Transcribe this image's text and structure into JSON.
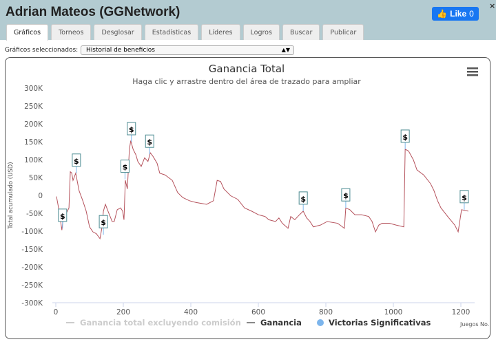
{
  "window": {
    "title": "Adrian Mateos (GGNetwork)",
    "like_label": "Like",
    "like_count": "0",
    "close": "×"
  },
  "tabs": [
    {
      "label": "Gráficos",
      "active": true
    },
    {
      "label": "Torneos"
    },
    {
      "label": "Desglosar"
    },
    {
      "label": "Estadísticas"
    },
    {
      "label": "Líderes"
    },
    {
      "label": "Logros"
    },
    {
      "label": "Buscar"
    },
    {
      "label": "Publicar"
    }
  ],
  "selector": {
    "label": "Gráficos seleccionados:",
    "value": "Historial de beneficios"
  },
  "chart_data": {
    "type": "line",
    "title": "Ganancia Total",
    "subtitle": "Haga clic y arrastre dentro del área de trazado para ampliar",
    "ylabel": "Total acumulado (USD)",
    "xlabel": "Juegos No.",
    "xlim": [
      0,
      1240
    ],
    "ylim": [
      -300000,
      300000
    ],
    "xticks": [
      0,
      200,
      400,
      600,
      800,
      1000,
      1200
    ],
    "yticks": [
      {
        "v": 300000,
        "l": "300K"
      },
      {
        "v": 250000,
        "l": "250K"
      },
      {
        "v": 200000,
        "l": "200K"
      },
      {
        "v": 150000,
        "l": "150K"
      },
      {
        "v": 100000,
        "l": "100K"
      },
      {
        "v": 50000,
        "l": "50K"
      },
      {
        "v": 0,
        "l": "0"
      },
      {
        "v": -50000,
        "l": "-50K"
      },
      {
        "v": -100000,
        "l": "-100K"
      },
      {
        "v": -150000,
        "l": "-150K"
      },
      {
        "v": -200000,
        "l": "-200K"
      },
      {
        "v": -250000,
        "l": "-250K"
      },
      {
        "v": -300000,
        "l": "-300K"
      }
    ],
    "grid": false,
    "legend": {
      "placement": "bottom",
      "items": [
        {
          "label": "Ganancia total excluyendo comisión",
          "color": "#cccccc",
          "hidden": true
        },
        {
          "label": "Ganancia",
          "color": "#888888"
        },
        {
          "label": "Victorias Significativas",
          "color": "#7cb5ec"
        }
      ]
    },
    "series": [
      {
        "name": "Ganancia",
        "color": "#b5525c",
        "points": [
          [
            2,
            -3000
          ],
          [
            10,
            -44000
          ],
          [
            18,
            -97000
          ],
          [
            24,
            -49000
          ],
          [
            30,
            -52000
          ],
          [
            39,
            -35000
          ],
          [
            43,
            66000
          ],
          [
            47,
            63000
          ],
          [
            51,
            42000
          ],
          [
            59,
            62000
          ],
          [
            69,
            13000
          ],
          [
            80,
            -15000
          ],
          [
            90,
            -44000
          ],
          [
            100,
            -88000
          ],
          [
            110,
            -102000
          ],
          [
            120,
            -107000
          ],
          [
            131,
            -121000
          ],
          [
            137,
            -88000
          ],
          [
            141,
            -44000
          ],
          [
            147,
            -25000
          ],
          [
            153,
            -40000
          ],
          [
            161,
            -59000
          ],
          [
            167,
            -73000
          ],
          [
            173,
            -73000
          ],
          [
            182,
            -40000
          ],
          [
            192,
            -35000
          ],
          [
            198,
            -44000
          ],
          [
            202,
            -68000
          ],
          [
            206,
            42000
          ],
          [
            212,
            18000
          ],
          [
            218,
            129000
          ],
          [
            222,
            153000
          ],
          [
            229,
            129000
          ],
          [
            237,
            114000
          ],
          [
            243,
            95000
          ],
          [
            253,
            81000
          ],
          [
            263,
            105000
          ],
          [
            273,
            95000
          ],
          [
            280,
            119000
          ],
          [
            288,
            109000
          ],
          [
            300,
            90000
          ],
          [
            308,
            62000
          ],
          [
            324,
            57000
          ],
          [
            345,
            42000
          ],
          [
            361,
            8000
          ],
          [
            376,
            -6000
          ],
          [
            396,
            -15000
          ],
          [
            416,
            -20000
          ],
          [
            447,
            -25000
          ],
          [
            467,
            -15000
          ],
          [
            478,
            42000
          ],
          [
            488,
            39000
          ],
          [
            498,
            18000
          ],
          [
            518,
            -1000
          ],
          [
            539,
            -11000
          ],
          [
            559,
            -35000
          ],
          [
            580,
            -44000
          ],
          [
            600,
            -54000
          ],
          [
            620,
            -59000
          ],
          [
            631,
            -68000
          ],
          [
            651,
            -73000
          ],
          [
            661,
            -63000
          ],
          [
            671,
            -78000
          ],
          [
            688,
            -92000
          ],
          [
            696,
            -59000
          ],
          [
            708,
            -68000
          ],
          [
            722,
            -54000
          ],
          [
            733,
            -44000
          ],
          [
            743,
            -63000
          ],
          [
            753,
            -73000
          ],
          [
            763,
            -88000
          ],
          [
            784,
            -83000
          ],
          [
            804,
            -73000
          ],
          [
            835,
            -78000
          ],
          [
            855,
            -92000
          ],
          [
            859,
            -35000
          ],
          [
            871,
            -40000
          ],
          [
            886,
            -54000
          ],
          [
            906,
            -54000
          ],
          [
            927,
            -59000
          ],
          [
            937,
            -73000
          ],
          [
            947,
            -102000
          ],
          [
            957,
            -83000
          ],
          [
            967,
            -78000
          ],
          [
            988,
            -78000
          ],
          [
            1008,
            -83000
          ],
          [
            1031,
            -88000
          ],
          [
            1035,
            129000
          ],
          [
            1045,
            124000
          ],
          [
            1059,
            100000
          ],
          [
            1070,
            71000
          ],
          [
            1090,
            57000
          ],
          [
            1110,
            33000
          ],
          [
            1120,
            14000
          ],
          [
            1131,
            -15000
          ],
          [
            1141,
            -35000
          ],
          [
            1161,
            -59000
          ],
          [
            1182,
            -83000
          ],
          [
            1192,
            -102000
          ],
          [
            1202,
            -40000
          ],
          [
            1222,
            -44000
          ]
        ]
      }
    ],
    "markers": [
      {
        "x": 20,
        "y": -92000,
        "label": "$"
      },
      {
        "x": 61,
        "y": 62000,
        "label": "$"
      },
      {
        "x": 141,
        "y": -110000,
        "label": "$"
      },
      {
        "x": 205,
        "y": 45000,
        "label": "$"
      },
      {
        "x": 224,
        "y": 150000,
        "label": "$"
      },
      {
        "x": 278,
        "y": 115000,
        "label": "$"
      },
      {
        "x": 733,
        "y": -44000,
        "label": "$"
      },
      {
        "x": 859,
        "y": -35000,
        "label": "$"
      },
      {
        "x": 1035,
        "y": 129000,
        "label": "$"
      },
      {
        "x": 1210,
        "y": -40000,
        "label": "$"
      }
    ]
  }
}
